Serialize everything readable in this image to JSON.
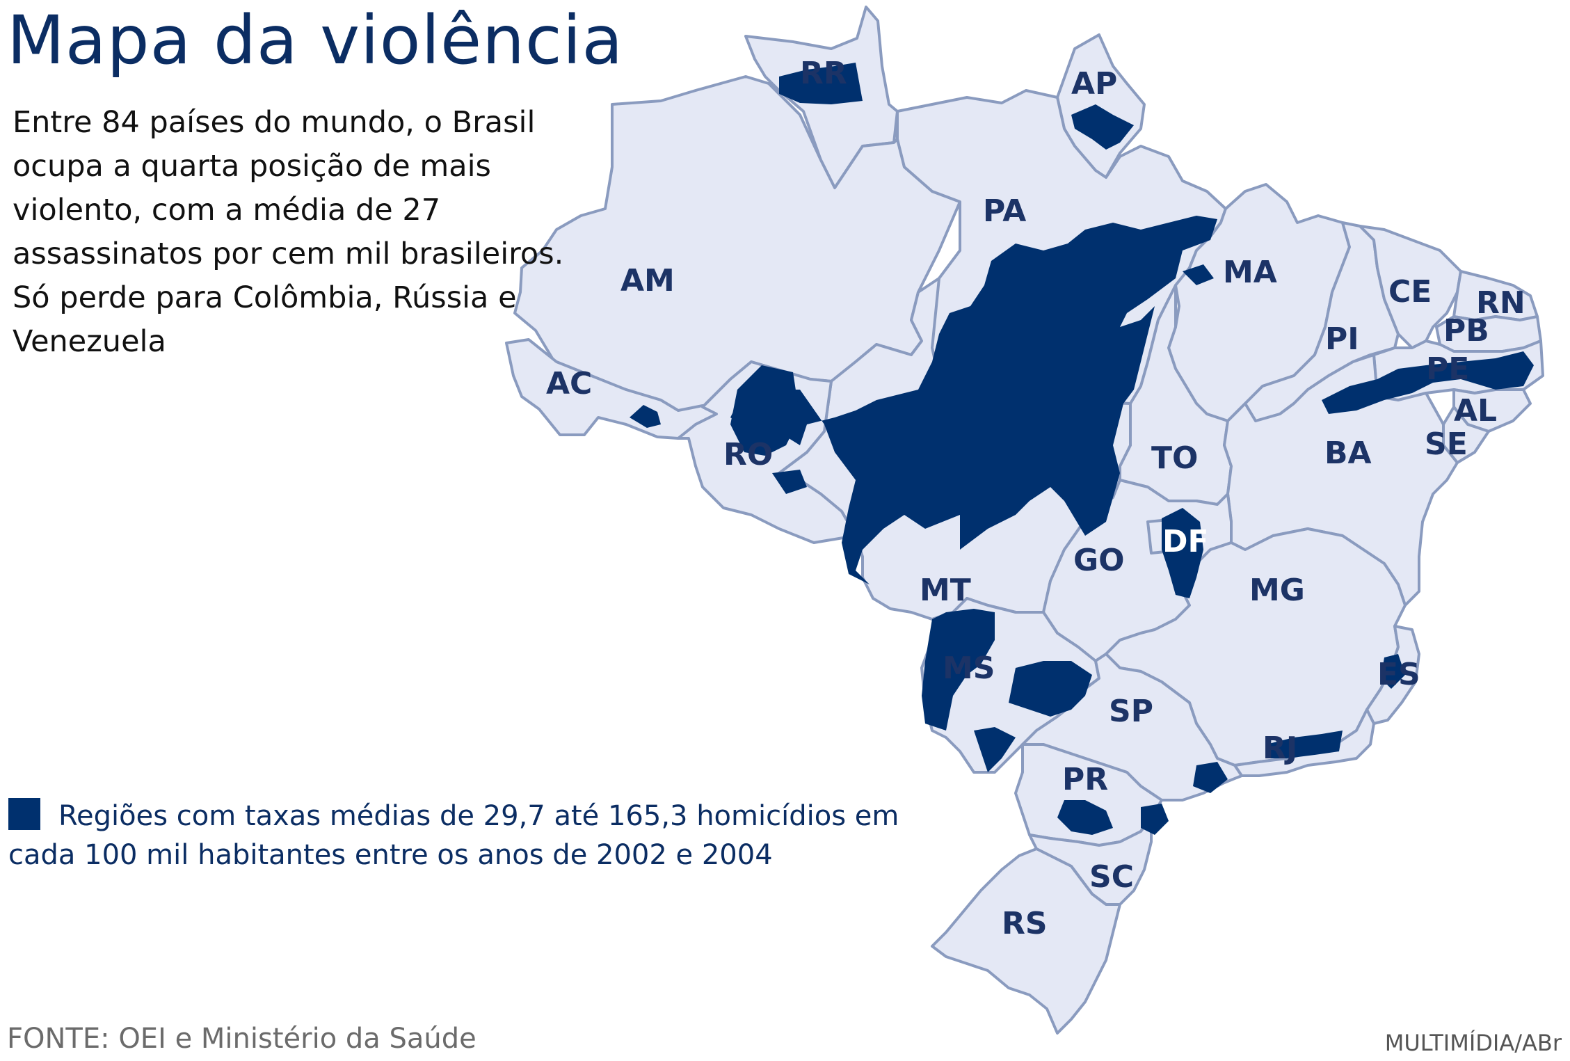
{
  "title": "Mapa da violência",
  "intro": "Entre 84 países do mundo, o Brasil ocupa a quarta posição de mais violento, com a média de 27 assassinatos por cem mil brasileiros. Só perde para Colômbia, Rússia e Venezuela",
  "legend": {
    "text": "Regiões com taxas médias de 29,7 até 165,3 homicídios em cada 100 mil habitantes entre os anos de 2002 e 2004",
    "color": "#00306e"
  },
  "source": "FONTE: OEI e Ministério da Saúde",
  "credit": "MULTIMÍDIA/ABr",
  "map": {
    "region": "Brasil",
    "land_color": "#e4e8f5",
    "border_color": "#8a9bbf",
    "states": [
      {
        "code": "RR"
      },
      {
        "code": "AP"
      },
      {
        "code": "AM"
      },
      {
        "code": "PA"
      },
      {
        "code": "MA"
      },
      {
        "code": "CE"
      },
      {
        "code": "RN"
      },
      {
        "code": "PB"
      },
      {
        "code": "PI"
      },
      {
        "code": "PE"
      },
      {
        "code": "AL"
      },
      {
        "code": "SE"
      },
      {
        "code": "AC"
      },
      {
        "code": "RO"
      },
      {
        "code": "TO"
      },
      {
        "code": "BA"
      },
      {
        "code": "DF"
      },
      {
        "code": "GO"
      },
      {
        "code": "MT"
      },
      {
        "code": "MG"
      },
      {
        "code": "MS"
      },
      {
        "code": "ES"
      },
      {
        "code": "SP"
      },
      {
        "code": "RJ"
      },
      {
        "code": "PR"
      },
      {
        "code": "SC"
      },
      {
        "code": "RS"
      }
    ]
  }
}
